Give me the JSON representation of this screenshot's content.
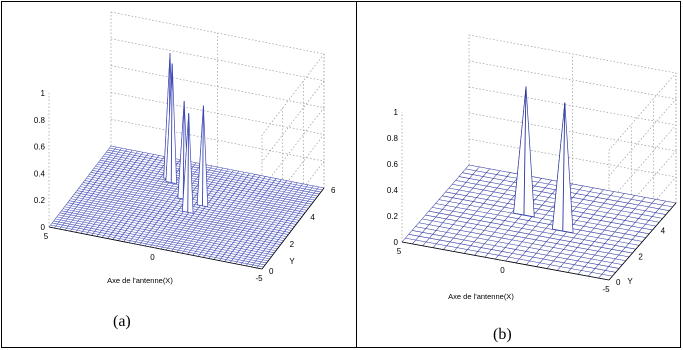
{
  "colors": {
    "surface_fill": "#ffffff",
    "mesh_a": "#3c46b4",
    "mesh_b": "#2c36a0",
    "grid": "#9a9a9a",
    "axis": "#000000"
  },
  "panels": [
    {
      "caption": "(a)"
    },
    {
      "caption": "(b)"
    }
  ],
  "chart_data": [
    {
      "type": "surface",
      "panel": "a",
      "title": "",
      "xlabel": "Axe de l'antenne(X)",
      "ylabel": "Y",
      "zlabel": "",
      "xlim": [
        -5,
        5
      ],
      "ylim": [
        0,
        6
      ],
      "zlim": [
        0,
        1
      ],
      "x_ticks": [
        "5",
        "0",
        "-5"
      ],
      "y_ticks": [
        "0",
        "2",
        "4",
        "6"
      ],
      "z_ticks": [
        "0",
        "0.2",
        "0.4",
        "0.6",
        "0.8",
        "1"
      ],
      "grid": true,
      "peaks": [
        {
          "x": 0.6,
          "y": 3.4,
          "z": 0.74
        },
        {
          "x": -0.4,
          "y": 3.6,
          "z": 0.72
        },
        {
          "x": 0.2,
          "y": 2.8,
          "z": 0.73
        },
        {
          "x": -1.4,
          "y": 4.5,
          "z": 0.88
        },
        {
          "x": -1.6,
          "y": 4.7,
          "z": 0.93
        }
      ]
    },
    {
      "type": "surface",
      "panel": "b",
      "title": "",
      "xlabel": "Axe de l'antenne(X)",
      "ylabel": "Y",
      "zlabel": "",
      "xlim": [
        -5,
        5
      ],
      "ylim": [
        0,
        6
      ],
      "zlim": [
        0,
        1
      ],
      "x_ticks": [
        "5",
        "0",
        "-5"
      ],
      "y_ticks": [
        "0",
        "2",
        "4",
        "6"
      ],
      "z_ticks": [
        "0",
        "0.2",
        "0.4",
        "0.6",
        "0.8",
        "1"
      ],
      "grid": true,
      "peaks": [
        {
          "x": 1.3,
          "y": 2.9,
          "z": 0.97
        },
        {
          "x": -0.9,
          "y": 3.5,
          "z": 0.97
        }
      ]
    }
  ]
}
